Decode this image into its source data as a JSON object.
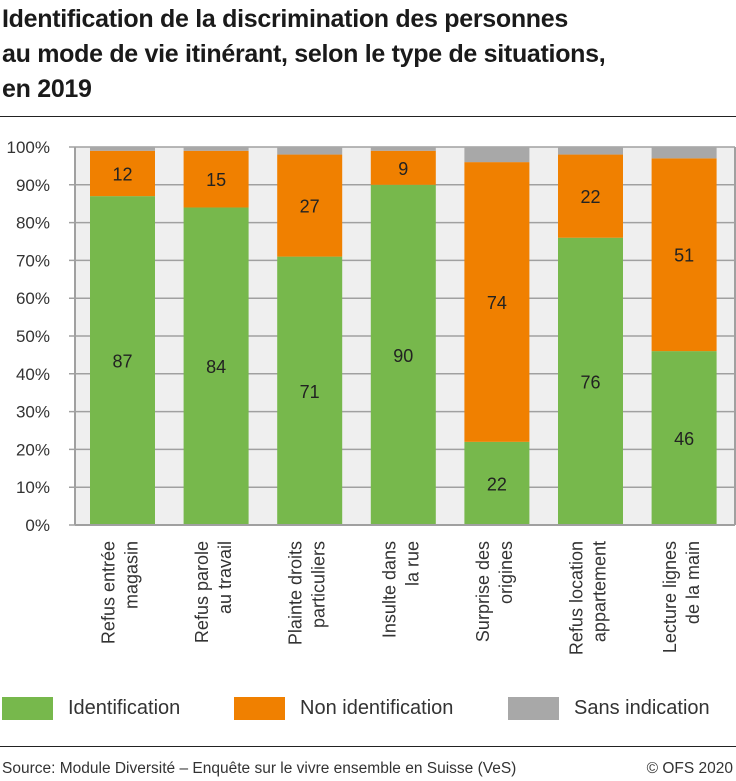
{
  "title_lines": [
    "Identification de la discrimination des personnes",
    "au mode de vie itinérant, selon le type de situations,",
    "en 2019"
  ],
  "chart_data": {
    "type": "bar",
    "stacked": true,
    "title": "Identification de la discrimination des personnes au mode de vie itinérant, selon le type de situations, en 2019",
    "categories": [
      [
        "Refus entrée",
        "magasin"
      ],
      [
        "Refus parole",
        "au travail"
      ],
      [
        "Plainte droits",
        "particuliers"
      ],
      [
        "Insulte dans",
        "la rue"
      ],
      [
        "Surprise des",
        "origines"
      ],
      [
        "Refus location",
        "appartement"
      ],
      [
        "Lecture lignes",
        "de la main"
      ]
    ],
    "series": [
      {
        "name": "Identification",
        "color": "#77b84c",
        "values": [
          87,
          84,
          71,
          90,
          22,
          76,
          46
        ],
        "labeled": true
      },
      {
        "name": "Non identification",
        "color": "#f08000",
        "values": [
          12,
          15,
          27,
          9,
          74,
          22,
          51
        ],
        "labeled": true
      },
      {
        "name": "Sans indication",
        "color": "#a8a8a8",
        "values": [
          1,
          1,
          2,
          1,
          4,
          2,
          3
        ],
        "labeled": false
      }
    ],
    "ylim": [
      0,
      100
    ],
    "yticks": [
      "0%",
      "10%",
      "20%",
      "30%",
      "40%",
      "50%",
      "60%",
      "70%",
      "80%",
      "90%",
      "100%"
    ],
    "grid": true,
    "legend": "bottom"
  },
  "legend": [
    "Identification",
    "Non identification",
    "Sans indication"
  ],
  "footer": {
    "source": "Source: Module Diversité – Enquête sur le vivre ensemble en Suisse (VeS)",
    "copyright": "© OFS 2020"
  }
}
